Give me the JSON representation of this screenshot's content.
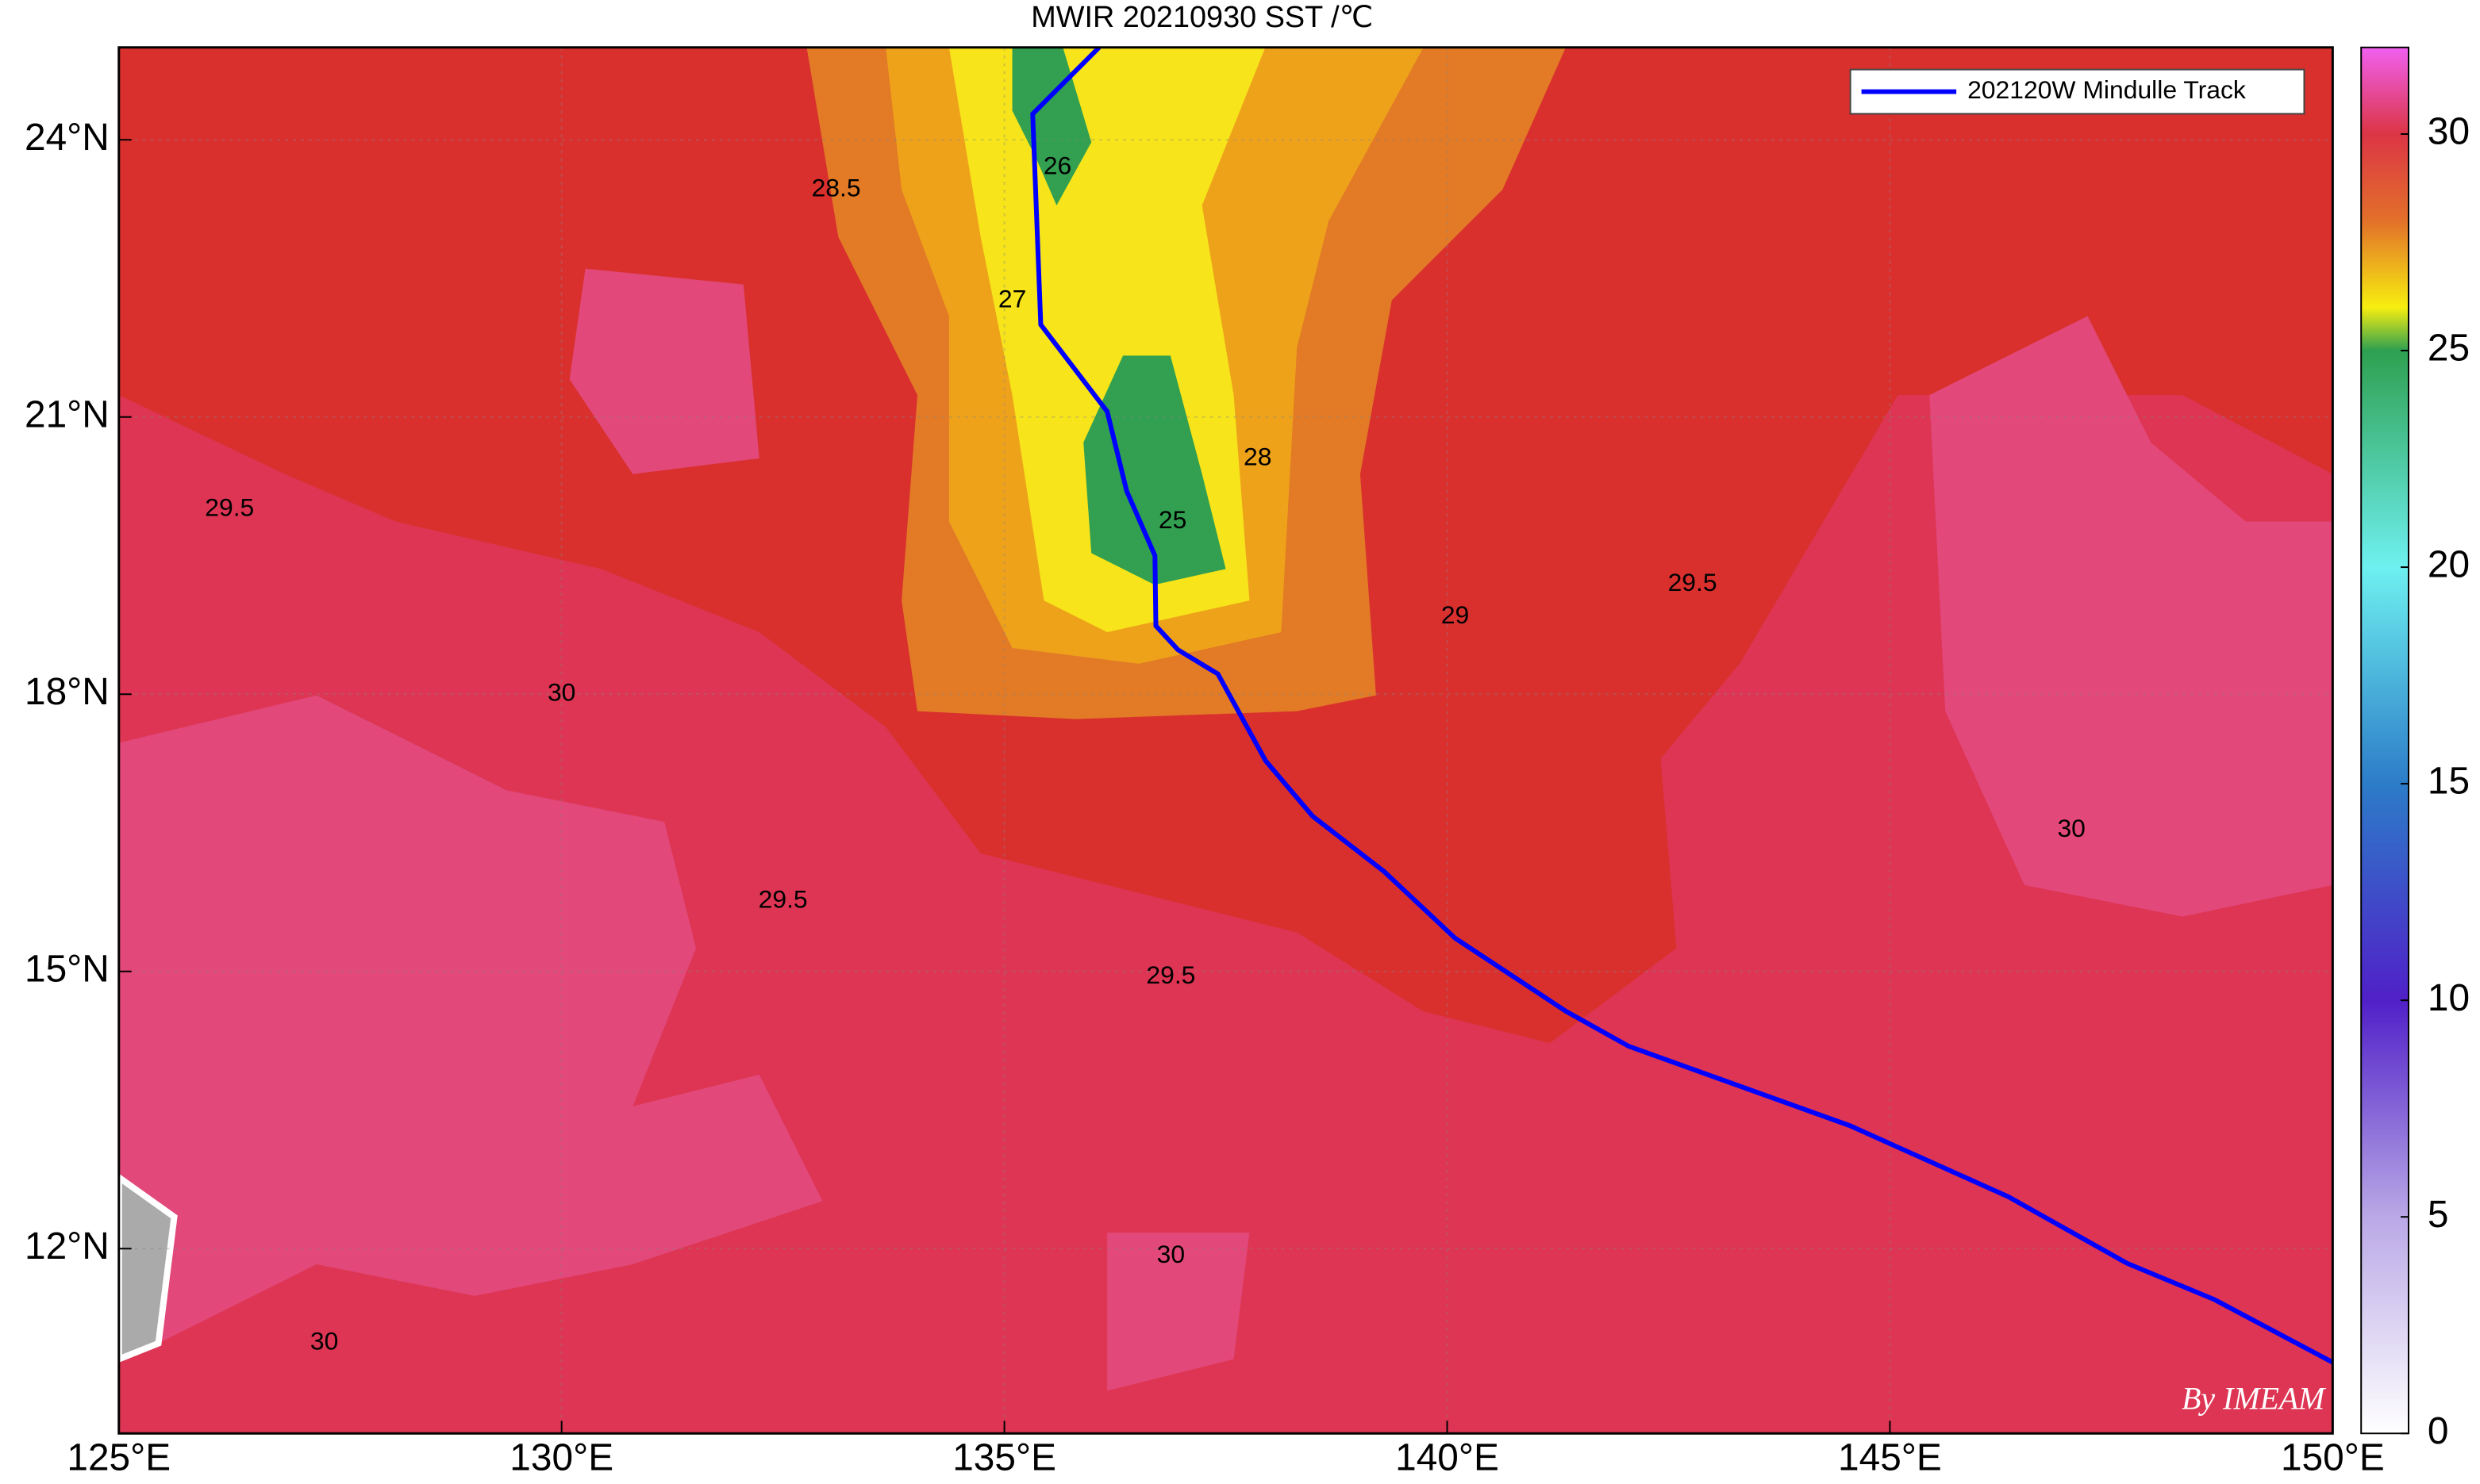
{
  "chart_data": {
    "type": "map",
    "title": "MWIR 20210930 SST /℃",
    "xlim": [
      125,
      150
    ],
    "ylim": [
      10,
      25
    ],
    "xticks": [
      {
        "value": 125,
        "label": "125°E"
      },
      {
        "value": 130,
        "label": "130°E"
      },
      {
        "value": 135,
        "label": "135°E"
      },
      {
        "value": 140,
        "label": "140°E"
      },
      {
        "value": 145,
        "label": "145°E"
      },
      {
        "value": 150,
        "label": "150°E"
      }
    ],
    "yticks": [
      {
        "value": 12,
        "label": "12°N"
      },
      {
        "value": 15,
        "label": "15°N"
      },
      {
        "value": 18,
        "label": "18°N"
      },
      {
        "value": 21,
        "label": "21°N"
      },
      {
        "value": 24,
        "label": "24°N"
      }
    ],
    "grid": true,
    "legend": "upper right",
    "series": [
      {
        "name": "202120W Mindulle Track",
        "color": "#0000ff",
        "x": [
          136.07,
          135.32,
          135.41,
          136.16,
          136.38,
          136.7,
          136.71,
          136.96,
          137.41,
          137.95,
          138.48,
          139.29,
          140.09,
          141.34,
          142.05,
          144.55,
          146.34,
          147.68,
          148.66,
          150.0
        ],
        "values": [
          25.0,
          24.28,
          22.0,
          21.06,
          20.2,
          19.5,
          18.74,
          18.48,
          18.22,
          17.28,
          16.68,
          16.08,
          15.36,
          14.57,
          14.19,
          13.33,
          12.56,
          11.84,
          11.45,
          10.77
        ]
      }
    ],
    "contour_labels": [
      {
        "text": "29.5",
        "lon": 126.25,
        "lat": 20.0
      },
      {
        "text": "30",
        "lon": 130.0,
        "lat": 18.0
      },
      {
        "text": "28.5",
        "lon": 133.1,
        "lat": 23.46
      },
      {
        "text": "27",
        "lon": 135.09,
        "lat": 22.26
      },
      {
        "text": "26",
        "lon": 135.6,
        "lat": 23.7
      },
      {
        "text": "25",
        "lon": 136.9,
        "lat": 19.87
      },
      {
        "text": "28",
        "lon": 137.86,
        "lat": 20.55
      },
      {
        "text": "29",
        "lon": 140.09,
        "lat": 18.84
      },
      {
        "text": "29.5",
        "lon": 142.77,
        "lat": 19.19
      },
      {
        "text": "30",
        "lon": 147.05,
        "lat": 16.53
      },
      {
        "text": "29.5",
        "lon": 132.5,
        "lat": 15.76
      },
      {
        "text": "30",
        "lon": 136.88,
        "lat": 11.92
      },
      {
        "text": "29.5",
        "lon": 136.88,
        "lat": 14.94
      },
      {
        "text": "30",
        "lon": 127.32,
        "lat": 10.98
      }
    ],
    "colorbar": {
      "lim": [
        0,
        32
      ],
      "ticks": [
        0,
        5,
        10,
        15,
        20,
        25,
        30
      ],
      "stops": [
        {
          "value": 0,
          "color": "#ffffff"
        },
        {
          "value": 5,
          "color": "#b9a8e6"
        },
        {
          "value": 10,
          "color": "#5020c8"
        },
        {
          "value": 15,
          "color": "#2c7cc8"
        },
        {
          "value": 20,
          "color": "#6ef0f0"
        },
        {
          "value": 25,
          "color": "#2ea050"
        },
        {
          "value": 26,
          "color": "#f7ee10"
        },
        {
          "value": 28,
          "color": "#e2702a"
        },
        {
          "value": 30,
          "color": "#dc3545"
        },
        {
          "value": 32,
          "color": "#f060f0"
        }
      ]
    },
    "watermark": "By IMEAM"
  }
}
